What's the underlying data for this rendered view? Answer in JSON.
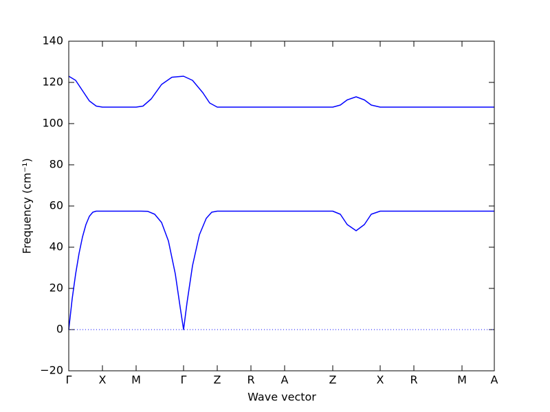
{
  "chart_data": {
    "type": "line",
    "x_label": "Wave vector",
    "y_label": "Frequency (cm⁻¹)",
    "xlim": [
      0,
      619
    ],
    "ylim": [
      -20,
      140
    ],
    "xticks": [
      {
        "value": 0,
        "label": "Γ"
      },
      {
        "value": 49,
        "label": "X"
      },
      {
        "value": 98,
        "label": "M"
      },
      {
        "value": 167,
        "label": "Γ"
      },
      {
        "value": 216,
        "label": "Z"
      },
      {
        "value": 265,
        "label": "R"
      },
      {
        "value": 314,
        "label": "A"
      },
      {
        "value": 384,
        "label": "Z"
      },
      {
        "value": 453,
        "label": "X"
      },
      {
        "value": 502,
        "label": "R"
      },
      {
        "value": 572,
        "label": "M"
      },
      {
        "value": 619,
        "label": "A"
      }
    ],
    "yticks": [
      {
        "value": -20,
        "label": "−20"
      },
      0,
      20,
      40,
      60,
      80,
      100,
      120,
      140
    ],
    "zero_line": true,
    "series": [
      {
        "color": "#0000ff",
        "x": [
          0,
          5,
          10,
          15,
          20,
          25,
          30,
          35,
          40,
          49,
          98,
          105,
          115,
          125,
          135,
          145,
          155,
          162,
          167,
          172,
          180,
          190,
          200,
          208,
          216,
          384,
          395,
          405,
          418,
          430,
          440,
          453,
          619
        ],
        "values": [
          0,
          15,
          27,
          37,
          45,
          51,
          55,
          57,
          57.5,
          57.5,
          57.5,
          57.5,
          57.4,
          56,
          52,
          43,
          27,
          11,
          0,
          13,
          31,
          46,
          54,
          57,
          57.5,
          57.5,
          56,
          51,
          48,
          51,
          56,
          57.5,
          57.5
        ]
      },
      {
        "color": "#0000ff",
        "x": [
          0,
          10,
          20,
          30,
          40,
          49,
          98,
          108,
          120,
          135,
          150,
          167,
          180,
          195,
          205,
          216,
          384,
          395,
          405,
          418,
          430,
          440,
          453,
          619
        ],
        "values": [
          123,
          121,
          116,
          111,
          108.5,
          108,
          108,
          108.5,
          112,
          119,
          122.5,
          123,
          121,
          115,
          110,
          108,
          108,
          109,
          111.5,
          113,
          111.5,
          109,
          108,
          108
        ]
      }
    ]
  }
}
